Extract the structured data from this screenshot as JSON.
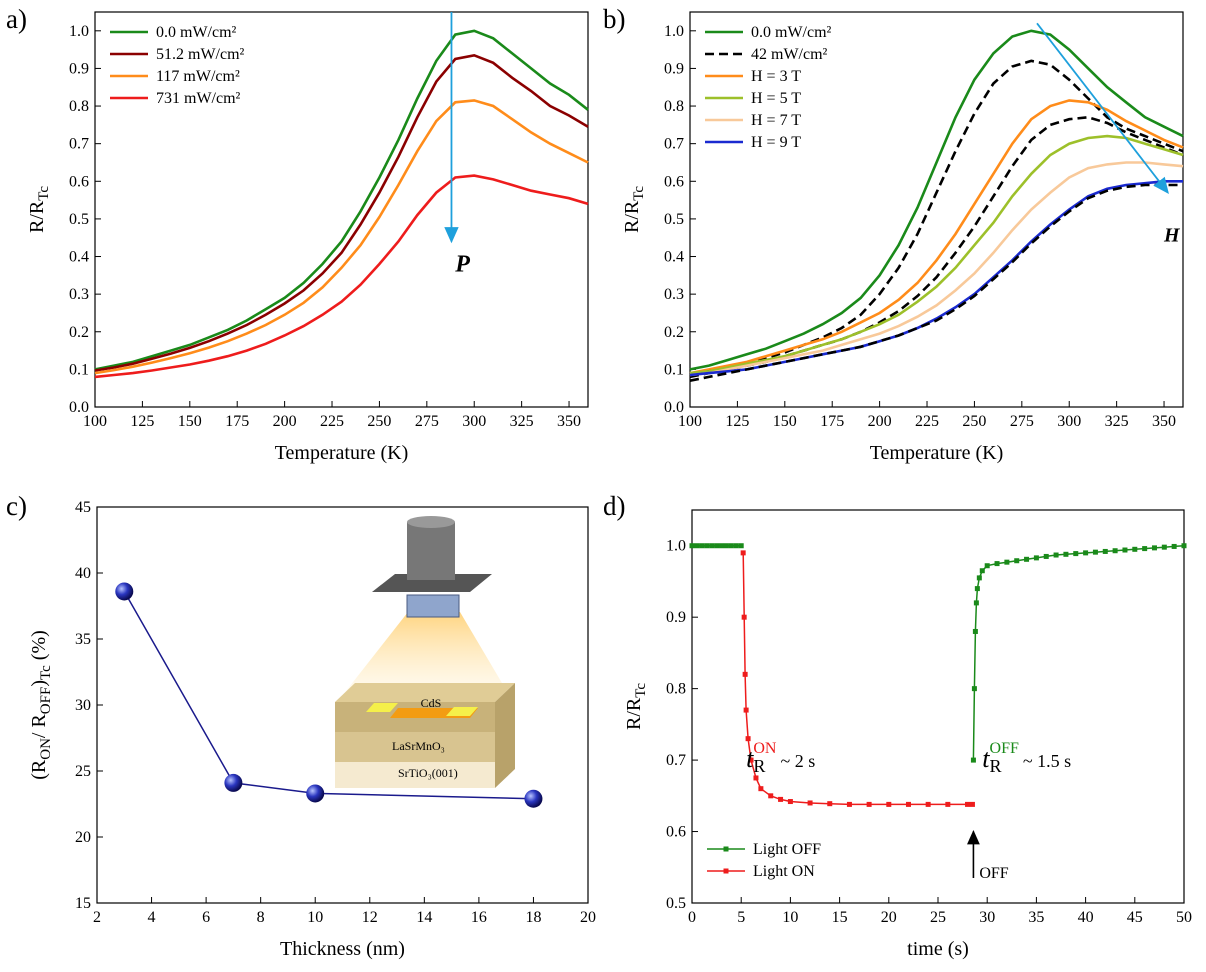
{
  "chart_data": [
    {
      "type": "line",
      "label": "a)",
      "xlabel": "Temperature (K)",
      "ylabel": [
        "R/R",
        "Tc"
      ],
      "xlim": [
        100,
        360
      ],
      "xticks": [
        100,
        125,
        150,
        175,
        200,
        225,
        250,
        275,
        300,
        325,
        350
      ],
      "ylim": [
        0,
        1.05
      ],
      "yticks": [
        {
          "value": 0,
          "label": "0.0"
        },
        0.1,
        0.2,
        0.3,
        0.4,
        0.5,
        0.6,
        0.7,
        0.8,
        0.9,
        {
          "value": 1,
          "label": "1.0"
        }
      ],
      "legend": "upper left",
      "x": [
        100,
        110,
        120,
        130,
        140,
        150,
        160,
        170,
        180,
        190,
        200,
        210,
        220,
        230,
        240,
        250,
        260,
        270,
        280,
        290,
        300,
        310,
        320,
        330,
        340,
        350,
        360
      ],
      "series": [
        {
          "name": "0.0  mW/cm²",
          "color": "#1a8a1a",
          "values": [
            0.1,
            0.11,
            0.12,
            0.135,
            0.15,
            0.165,
            0.185,
            0.205,
            0.23,
            0.26,
            0.29,
            0.33,
            0.38,
            0.44,
            0.52,
            0.61,
            0.71,
            0.82,
            0.92,
            0.99,
            1.0,
            0.98,
            0.94,
            0.9,
            0.86,
            0.83,
            0.79
          ]
        },
        {
          "name": "51.2  mW/cm²",
          "color": "#8b0000",
          "values": [
            0.097,
            0.105,
            0.115,
            0.128,
            0.142,
            0.157,
            0.175,
            0.195,
            0.218,
            0.245,
            0.275,
            0.31,
            0.355,
            0.41,
            0.485,
            0.57,
            0.665,
            0.77,
            0.865,
            0.925,
            0.935,
            0.915,
            0.875,
            0.84,
            0.8,
            0.775,
            0.745
          ]
        },
        {
          "name": "117  mW/cm²",
          "color": "#ff8c1a",
          "values": [
            0.09,
            0.098,
            0.107,
            0.118,
            0.13,
            0.143,
            0.158,
            0.175,
            0.195,
            0.218,
            0.245,
            0.277,
            0.318,
            0.37,
            0.43,
            0.505,
            0.59,
            0.68,
            0.76,
            0.81,
            0.815,
            0.8,
            0.765,
            0.73,
            0.7,
            0.675,
            0.65
          ]
        },
        {
          "name": "731  mW/cm²",
          "color": "#ee1c1c",
          "values": [
            0.08,
            0.085,
            0.09,
            0.097,
            0.105,
            0.113,
            0.123,
            0.135,
            0.15,
            0.168,
            0.19,
            0.215,
            0.245,
            0.28,
            0.325,
            0.38,
            0.44,
            0.51,
            0.57,
            0.61,
            0.615,
            0.605,
            0.59,
            0.575,
            0.565,
            0.555,
            0.54
          ]
        }
      ],
      "annotations": [
        {
          "text": "P",
          "color": "#000000"
        }
      ]
    },
    {
      "type": "line",
      "label": "b)",
      "xlabel": "Temperature (K)",
      "ylabel": [
        "R/R",
        "Tc"
      ],
      "xlim": [
        100,
        360
      ],
      "xticks": [
        100,
        125,
        150,
        175,
        200,
        225,
        250,
        275,
        300,
        325,
        350
      ],
      "ylim": [
        0,
        1.05
      ],
      "yticks": [
        {
          "value": 0,
          "label": "0.0"
        },
        0.1,
        0.2,
        0.3,
        0.4,
        0.5,
        0.6,
        0.7,
        0.8,
        0.9,
        {
          "value": 1,
          "label": "1.0"
        }
      ],
      "legend": "upper left",
      "x": [
        100,
        110,
        120,
        130,
        140,
        150,
        160,
        170,
        180,
        190,
        200,
        210,
        220,
        230,
        240,
        250,
        260,
        270,
        280,
        290,
        300,
        310,
        320,
        330,
        340,
        350,
        360
      ],
      "series": [
        {
          "name": "0.0 mW/cm²",
          "color": "#1a8a1a",
          "line_style": "solid",
          "values": [
            0.1,
            0.11,
            0.125,
            0.14,
            0.155,
            0.175,
            0.195,
            0.22,
            0.25,
            0.29,
            0.35,
            0.43,
            0.53,
            0.65,
            0.77,
            0.87,
            0.94,
            0.985,
            1.0,
            0.99,
            0.95,
            0.9,
            0.85,
            0.81,
            0.77,
            0.745,
            0.72
          ]
        },
        {
          "name": "42  mW/cm²",
          "color": "#000000",
          "line_style": "dashed",
          "values": [
            0.08,
            0.09,
            0.1,
            0.115,
            0.13,
            0.145,
            0.165,
            0.185,
            0.21,
            0.245,
            0.3,
            0.37,
            0.46,
            0.57,
            0.68,
            0.78,
            0.86,
            0.905,
            0.92,
            0.91,
            0.87,
            0.82,
            0.77,
            0.74,
            0.72,
            0.7,
            0.68
          ]
        },
        {
          "name": "H = 3 T",
          "color": "#ff8c1a",
          "line_style": "solid",
          "values": [
            0.09,
            0.1,
            0.11,
            0.12,
            0.135,
            0.15,
            0.165,
            0.18,
            0.2,
            0.225,
            0.25,
            0.285,
            0.33,
            0.39,
            0.46,
            0.54,
            0.62,
            0.7,
            0.765,
            0.8,
            0.815,
            0.81,
            0.79,
            0.76,
            0.735,
            0.71,
            0.69
          ]
        },
        {
          "color": "#000000",
          "line_style": "dashed",
          "values": [
            0.085,
            0.095,
            0.1,
            0.11,
            0.12,
            0.135,
            0.15,
            0.165,
            0.18,
            0.2,
            0.225,
            0.255,
            0.295,
            0.345,
            0.41,
            0.48,
            0.56,
            0.64,
            0.71,
            0.75,
            0.765,
            0.77,
            0.755,
            0.73,
            0.71,
            0.69,
            0.67
          ]
        },
        {
          "name": "H = 5 T",
          "color": "#9dc02a",
          "line_style": "solid",
          "values": [
            0.09,
            0.095,
            0.105,
            0.115,
            0.125,
            0.135,
            0.15,
            0.165,
            0.18,
            0.2,
            0.22,
            0.245,
            0.28,
            0.32,
            0.37,
            0.43,
            0.49,
            0.56,
            0.62,
            0.67,
            0.7,
            0.715,
            0.72,
            0.715,
            0.7,
            0.685,
            0.67
          ]
        },
        {
          "name": "H = 7 T",
          "color": "#f8c99a",
          "line_style": "solid",
          "values": [
            0.085,
            0.09,
            0.1,
            0.11,
            0.12,
            0.13,
            0.14,
            0.15,
            0.165,
            0.18,
            0.195,
            0.215,
            0.24,
            0.27,
            0.31,
            0.355,
            0.41,
            0.47,
            0.525,
            0.57,
            0.61,
            0.635,
            0.645,
            0.65,
            0.65,
            0.645,
            0.64
          ]
        },
        {
          "name": "H = 9 T",
          "color": "#1a2ad0",
          "line_style": "solid",
          "values": [
            0.085,
            0.09,
            0.095,
            0.1,
            0.11,
            0.12,
            0.13,
            0.14,
            0.15,
            0.16,
            0.175,
            0.19,
            0.21,
            0.235,
            0.265,
            0.3,
            0.345,
            0.39,
            0.44,
            0.485,
            0.525,
            0.56,
            0.58,
            0.59,
            0.595,
            0.6,
            0.6
          ]
        },
        {
          "color": "#000000",
          "line_style": "dashed",
          "values": [
            0.07,
            0.08,
            0.09,
            0.1,
            0.11,
            0.12,
            0.13,
            0.14,
            0.15,
            0.16,
            0.175,
            0.19,
            0.21,
            0.23,
            0.26,
            0.295,
            0.34,
            0.385,
            0.435,
            0.48,
            0.52,
            0.555,
            0.575,
            0.585,
            0.59,
            0.59,
            0.59
          ]
        }
      ],
      "annotations": [
        {
          "text": "H",
          "color": "#000000"
        }
      ]
    },
    {
      "type": "line",
      "label": "c)",
      "xlabel": "Thickness (nm)",
      "ylabel": [
        "(R",
        "ON",
        "/ R",
        "OFF",
        ")",
        "Tc",
        "   (%)"
      ],
      "xlim": [
        2,
        20
      ],
      "xticks": [
        2,
        4,
        6,
        8,
        10,
        12,
        14,
        16,
        18,
        20
      ],
      "ylim": [
        15,
        45
      ],
      "yticks": [
        15,
        20,
        25,
        30,
        35,
        40,
        45
      ],
      "x": [
        3,
        7,
        10,
        18
      ],
      "series": [
        {
          "color": "#1a1a8c",
          "marker": "sphere",
          "values": [
            38.6,
            24.1,
            23.3,
            22.9
          ]
        }
      ],
      "annotations": [
        {
          "text": "CdS",
          "color": "#000000"
        },
        {
          "text": "LaSrMnO₃",
          "color": "#000000"
        },
        {
          "text": "SrTiO₃(001)",
          "color": "#000000"
        }
      ]
    },
    {
      "type": "line",
      "label": "d)",
      "xlabel": "time (s)",
      "ylabel": [
        "R/R",
        "Tc"
      ],
      "xlim": [
        0,
        50
      ],
      "xticks": [
        0,
        5,
        10,
        15,
        20,
        25,
        30,
        35,
        40,
        45,
        50
      ],
      "ylim": [
        0.5,
        1.05
      ],
      "yticks": [
        0.5,
        0.6,
        0.7,
        0.8,
        0.9,
        {
          "value": 1,
          "label": "1.0"
        }
      ],
      "legend": "lower left",
      "series": [
        {
          "name": "Light OFF",
          "color": "#1a8a1a",
          "marker": "square",
          "x": [
            0,
            0.5,
            1,
            1.5,
            2,
            2.5,
            3,
            3.5,
            4,
            4.5,
            5,
            17,
            28.6,
            28.7,
            28.8,
            28.9,
            29,
            29.2,
            29.5,
            30,
            31,
            32,
            33,
            34,
            35,
            36,
            37,
            38,
            39,
            40,
            41,
            42,
            43,
            44,
            45,
            46,
            47,
            48,
            49,
            50
          ],
          "values": [
            1,
            1,
            1,
            1,
            1,
            1,
            1,
            1,
            1,
            1,
            1,
            null,
            0.7,
            0.8,
            0.88,
            0.92,
            0.94,
            0.955,
            0.965,
            0.972,
            0.975,
            0.977,
            0.979,
            0.981,
            0.983,
            0.985,
            0.987,
            0.988,
            0.989,
            0.99,
            0.991,
            0.992,
            0.993,
            0.994,
            0.995,
            0.996,
            0.997,
            0.998,
            0.999,
            1
          ]
        },
        {
          "name": "Light ON",
          "color": "#ee1c1c",
          "marker": "square",
          "x": [
            5.2,
            5.3,
            5.4,
            5.5,
            5.7,
            6,
            6.5,
            7,
            8,
            9,
            10,
            12,
            14,
            16,
            18,
            20,
            22,
            24,
            26,
            28,
            28.5
          ],
          "values": [
            0.99,
            0.9,
            0.82,
            0.77,
            0.73,
            0.7,
            0.675,
            0.66,
            0.65,
            0.645,
            0.642,
            0.64,
            0.639,
            0.638,
            0.638,
            0.638,
            0.638,
            0.638,
            0.638,
            0.638,
            0.638
          ]
        }
      ],
      "annotations": [
        {
          "parts": [
            "t",
            "R",
            "ON",
            "~ 2 s"
          ],
          "color": "#ee1c1c"
        },
        {
          "parts": [
            "t",
            "R",
            "OFF",
            "~ 1.5 s"
          ],
          "color": "#1a8a1a"
        },
        {
          "parts": [
            "OFF"
          ],
          "color": "#000000"
        }
      ]
    }
  ]
}
